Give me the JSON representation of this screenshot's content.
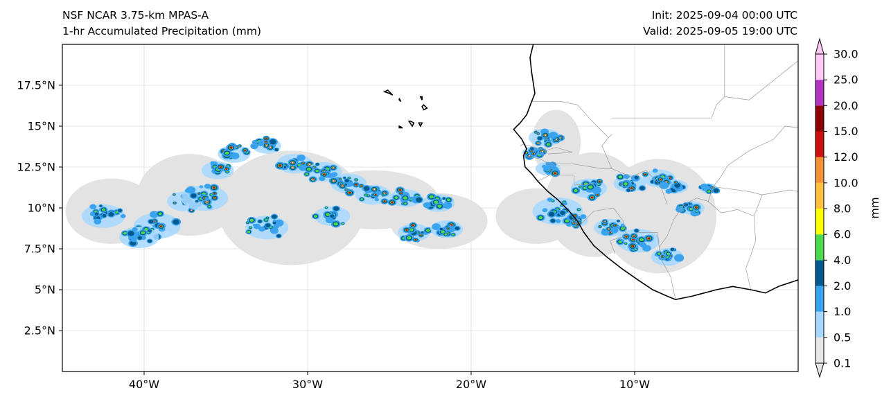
{
  "titles": {
    "model": "NSF NCAR 3.75-km MPAS-A",
    "field": "1-hr Accumulated Precipitation (mm)",
    "init": "Init: 2025-09-04 00:00 UTC",
    "valid": "Valid: 2025-09-05 19:00 UTC"
  },
  "map": {
    "lon_range": [
      -45,
      0
    ],
    "lat_range": [
      0,
      20
    ],
    "lon_ticks": [
      {
        "value": -40,
        "label": "40°W"
      },
      {
        "value": -30,
        "label": "30°W"
      },
      {
        "value": -20,
        "label": "20°W"
      },
      {
        "value": -10,
        "label": "10°W"
      }
    ],
    "lat_ticks": [
      {
        "value": 2.5,
        "label": "2.5°N"
      },
      {
        "value": 5,
        "label": "5°N"
      },
      {
        "value": 7.5,
        "label": "7.5°N"
      },
      {
        "value": 10,
        "label": "10°N"
      },
      {
        "value": 12.5,
        "label": "12.5°N"
      },
      {
        "value": 15,
        "label": "15°N"
      },
      {
        "value": 17.5,
        "label": "17.5°N"
      }
    ],
    "gridlines": true,
    "coastline_lonlat": [
      [
        -16.2,
        20.0
      ],
      [
        -16.4,
        19.2
      ],
      [
        -16.3,
        18.3
      ],
      [
        -16.1,
        17.0
      ],
      [
        -16.3,
        16.5
      ],
      [
        -16.6,
        15.7
      ],
      [
        -17.0,
        15.2
      ],
      [
        -17.4,
        14.8
      ],
      [
        -16.9,
        14.2
      ],
      [
        -16.6,
        13.6
      ],
      [
        -16.8,
        13.2
      ],
      [
        -16.7,
        12.5
      ],
      [
        -16.3,
        12.1
      ],
      [
        -15.9,
        11.6
      ],
      [
        -15.3,
        11.0
      ],
      [
        -14.7,
        10.5
      ],
      [
        -14.0,
        9.8
      ],
      [
        -13.5,
        9.2
      ],
      [
        -13.1,
        8.5
      ],
      [
        -12.5,
        7.7
      ],
      [
        -11.7,
        7.0
      ],
      [
        -10.8,
        6.3
      ],
      [
        -9.8,
        5.6
      ],
      [
        -8.9,
        5.0
      ],
      [
        -8.0,
        4.6
      ],
      [
        -7.5,
        4.4
      ],
      [
        -6.5,
        4.6
      ],
      [
        -5.0,
        5.0
      ],
      [
        -4.0,
        5.2
      ],
      [
        -2.9,
        5.0
      ],
      [
        -2.0,
        4.8
      ],
      [
        -1.2,
        5.2
      ],
      [
        0,
        5.6
      ]
    ],
    "islands_lonlat": [
      [
        [
          -25.3,
          17.1
        ],
        [
          -25.0,
          17.0
        ],
        [
          -24.8,
          16.9
        ],
        [
          -25.1,
          17.2
        ],
        [
          -25.3,
          17.1
        ]
      ],
      [
        [
          -24.4,
          16.7
        ],
        [
          -24.3,
          16.5
        ],
        [
          -24.4,
          16.6
        ]
      ],
      [
        [
          -23.8,
          15.3
        ],
        [
          -23.6,
          15.0
        ],
        [
          -23.5,
          15.2
        ],
        [
          -23.7,
          15.3
        ],
        [
          -23.8,
          15.3
        ]
      ],
      [
        [
          -24.4,
          15.0
        ],
        [
          -24.2,
          14.9
        ],
        [
          -24.4,
          14.9
        ]
      ],
      [
        [
          -23.2,
          15.2
        ],
        [
          -23.1,
          15.0
        ],
        [
          -23.0,
          15.2
        ],
        [
          -23.2,
          15.2
        ]
      ],
      [
        [
          -22.9,
          16.3
        ],
        [
          -22.7,
          16.1
        ],
        [
          -22.9,
          16.0
        ],
        [
          -23.0,
          16.2
        ],
        [
          -22.9,
          16.3
        ]
      ],
      [
        [
          -23.1,
          16.8
        ],
        [
          -23.0,
          16.6
        ],
        [
          -23.0,
          16.8
        ]
      ]
    ],
    "borders_lonlat": [
      [
        [
          -12.2,
          20.0
        ],
        [
          -11.5,
          20.0
        ],
        [
          -4.5,
          20.0
        ],
        [
          -4.5,
          16.8
        ],
        [
          -4.5,
          16.8
        ],
        [
          -5.0,
          16.3
        ],
        [
          -5.3,
          15.5
        ],
        [
          -6.0,
          15.5
        ],
        [
          -11.4,
          15.5
        ]
      ],
      [
        [
          -16.3,
          16.5
        ],
        [
          -15.5,
          16.5
        ],
        [
          -14.5,
          16.5
        ],
        [
          -13.5,
          16.3
        ],
        [
          -12.5,
          15.2
        ],
        [
          -11.6,
          14.3
        ]
      ],
      [
        [
          -17.0,
          13.8
        ],
        [
          -16.8,
          13.9
        ],
        [
          -15.8,
          13.6
        ],
        [
          -15.5,
          13.5
        ],
        [
          -14.8,
          13.7
        ],
        [
          -13.8,
          13.4
        ],
        [
          -15.3,
          13.3
        ]
      ],
      [
        [
          -16.8,
          13.2
        ],
        [
          -15.8,
          13.0
        ],
        [
          -15.2,
          12.7
        ],
        [
          -13.8,
          12.7
        ],
        [
          -12.0,
          12.4
        ]
      ],
      [
        [
          -16.0,
          11.6
        ],
        [
          -15.2,
          12.0
        ],
        [
          -13.7,
          12.0
        ],
        [
          -13.7,
          11.4
        ],
        [
          -12.5,
          11.5
        ]
      ],
      [
        [
          -13.3,
          9.0
        ],
        [
          -12.5,
          9.8
        ],
        [
          -11.3,
          10.0
        ],
        [
          -10.7,
          9.2
        ],
        [
          -10.5,
          8.3
        ],
        [
          -11.5,
          8.0
        ],
        [
          -11.2,
          7.2
        ]
      ],
      [
        [
          -8.5,
          7.6
        ],
        [
          -8.6,
          8.5
        ],
        [
          -9.8,
          8.5
        ],
        [
          -10.2,
          8.2
        ]
      ],
      [
        [
          -7.5,
          4.4
        ],
        [
          -7.8,
          5.8
        ],
        [
          -8.4,
          6.9
        ],
        [
          -8.5,
          7.6
        ],
        [
          -8.0,
          8.3
        ],
        [
          -7.6,
          9.3
        ],
        [
          -7.0,
          10.2
        ],
        [
          -6.2,
          10.6
        ],
        [
          -5.5,
          10.4
        ],
        [
          -4.7,
          9.7
        ],
        [
          -3.7,
          9.9
        ],
        [
          -2.7,
          9.5
        ]
      ],
      [
        [
          -12.0,
          12.4
        ],
        [
          -11.4,
          12.4
        ],
        [
          -10.2,
          11.9
        ],
        [
          -9.3,
          12.3
        ],
        [
          -8.4,
          11.3
        ],
        [
          -8.0,
          10.2
        ]
      ],
      [
        [
          -11.4,
          14.5
        ],
        [
          -11.6,
          14.3
        ],
        [
          -12.0,
          13.8
        ],
        [
          -11.4,
          12.4
        ]
      ],
      [
        [
          -5.2,
          11.3
        ],
        [
          -4.8,
          11.8
        ],
        [
          -4.3,
          12.6
        ],
        [
          -3.0,
          13.5
        ],
        [
          -1.5,
          14.2
        ],
        [
          -0.8,
          15.0
        ],
        [
          0,
          14.9
        ]
      ],
      [
        [
          -2.7,
          9.5
        ],
        [
          -2.6,
          8.0
        ],
        [
          -2.9,
          7.1
        ],
        [
          -3.2,
          6.3
        ],
        [
          -2.9,
          5.0
        ]
      ],
      [
        [
          -2.7,
          9.5
        ],
        [
          -2.2,
          10.8
        ],
        [
          -0.5,
          11.1
        ],
        [
          0,
          11.0
        ]
      ],
      [
        [
          -5.5,
          10.4
        ],
        [
          -5.2,
          11.3
        ],
        [
          -4.5,
          11.2
        ],
        [
          -3.0,
          11.0
        ],
        [
          -2.2,
          10.8
        ]
      ],
      [
        [
          0,
          19.0
        ],
        [
          -1.5,
          17.8
        ],
        [
          -3.0,
          16.6
        ],
        [
          -4.5,
          16.8
        ]
      ]
    ]
  },
  "precip": {
    "contour_note": "",
    "clusters": [
      {
        "lon": -42.5,
        "lat": 9.5,
        "size": 1.2,
        "max": 2
      },
      {
        "lon": -37.5,
        "lat": 10.4,
        "size": 1.0,
        "max": 4
      },
      {
        "lon": -36.3,
        "lat": 10.6,
        "size": 1.3,
        "max": 3
      },
      {
        "lon": -34.5,
        "lat": 13.3,
        "size": 0.9,
        "max": 3
      },
      {
        "lon": -35.5,
        "lat": 12.3,
        "size": 0.9,
        "max": 2
      },
      {
        "lon": -39.2,
        "lat": 8.9,
        "size": 1.3,
        "max": 2
      },
      {
        "lon": -40.3,
        "lat": 8.2,
        "size": 1.1,
        "max": 1
      },
      {
        "lon": -32.5,
        "lat": 13.8,
        "size": 0.8,
        "max": 3
      },
      {
        "lon": -30.8,
        "lat": 12.7,
        "size": 1.0,
        "max": 4
      },
      {
        "lon": -29.0,
        "lat": 12.2,
        "size": 1.0,
        "max": 3
      },
      {
        "lon": -27.5,
        "lat": 11.5,
        "size": 1.0,
        "max": 3
      },
      {
        "lon": -26.0,
        "lat": 10.8,
        "size": 1.0,
        "max": 3
      },
      {
        "lon": -24.0,
        "lat": 10.6,
        "size": 0.9,
        "max": 2
      },
      {
        "lon": -22.0,
        "lat": 10.3,
        "size": 0.9,
        "max": 1
      },
      {
        "lon": -23.5,
        "lat": 8.5,
        "size": 0.9,
        "max": 2
      },
      {
        "lon": -21.5,
        "lat": 8.7,
        "size": 0.9,
        "max": 2
      },
      {
        "lon": -32.5,
        "lat": 8.8,
        "size": 1.2,
        "max": 1
      },
      {
        "lon": -28.5,
        "lat": 9.5,
        "size": 1.0,
        "max": 1
      },
      {
        "lon": -15.5,
        "lat": 14.3,
        "size": 0.9,
        "max": 4
      },
      {
        "lon": -16.2,
        "lat": 13.4,
        "size": 0.6,
        "max": 3
      },
      {
        "lon": -15.3,
        "lat": 12.4,
        "size": 0.7,
        "max": 2
      },
      {
        "lon": -14.7,
        "lat": 9.8,
        "size": 1.4,
        "max": 1
      },
      {
        "lon": -13.5,
        "lat": 9.2,
        "size": 0.6,
        "max": 3
      },
      {
        "lon": -12.8,
        "lat": 11.2,
        "size": 1.0,
        "max": 2
      },
      {
        "lon": -11.5,
        "lat": 8.8,
        "size": 0.9,
        "max": 3
      },
      {
        "lon": -10.3,
        "lat": 11.5,
        "size": 0.9,
        "max": 2
      },
      {
        "lon": -9.8,
        "lat": 8.0,
        "size": 1.2,
        "max": 2
      },
      {
        "lon": -8.5,
        "lat": 11.8,
        "size": 0.9,
        "max": 2
      },
      {
        "lon": -7.5,
        "lat": 11.3,
        "size": 0.7,
        "max": 3
      },
      {
        "lon": -6.5,
        "lat": 10.0,
        "size": 0.7,
        "max": 2
      },
      {
        "lon": -8.0,
        "lat": 7.0,
        "size": 0.9,
        "max": 3
      },
      {
        "lon": -5.5,
        "lat": 11.2,
        "size": 0.5,
        "max": 2
      }
    ],
    "gray_areas": [
      {
        "lon": -42.0,
        "lat": 9.8,
        "rx": 2.8,
        "ry": 2.0
      },
      {
        "lon": -37.2,
        "lat": 10.8,
        "rx": 3.2,
        "ry": 2.5
      },
      {
        "lon": -31.0,
        "lat": 10.0,
        "rx": 4.5,
        "ry": 3.5
      },
      {
        "lon": -26.0,
        "lat": 10.5,
        "rx": 4.0,
        "ry": 1.8
      },
      {
        "lon": -22.0,
        "lat": 9.2,
        "rx": 3.0,
        "ry": 1.7
      },
      {
        "lon": -16.0,
        "lat": 9.5,
        "rx": 2.5,
        "ry": 1.7
      },
      {
        "lon": -12.5,
        "lat": 10.2,
        "rx": 3.0,
        "ry": 3.2
      },
      {
        "lon": -8.5,
        "lat": 9.5,
        "rx": 3.5,
        "ry": 3.5
      },
      {
        "lon": -14.8,
        "lat": 14.0,
        "rx": 1.5,
        "ry": 2.0
      }
    ]
  },
  "colorbar": {
    "label": "mm",
    "levels": [
      "0.1",
      "0.5",
      "1.0",
      "2.0",
      "4.0",
      "6.0",
      "8.0",
      "10.0",
      "12.0",
      "15.0",
      "20.0",
      "25.0",
      "30.0"
    ],
    "colors": [
      "#e6e6e6",
      "#a6d8ff",
      "#3aa3f0",
      "#005a8c",
      "#4dd94d",
      "#ffff00",
      "#ffbf40",
      "#f29135",
      "#cc1010",
      "#8b0000",
      "#b432c0",
      "#ffc8f5"
    ],
    "extend": "both"
  }
}
